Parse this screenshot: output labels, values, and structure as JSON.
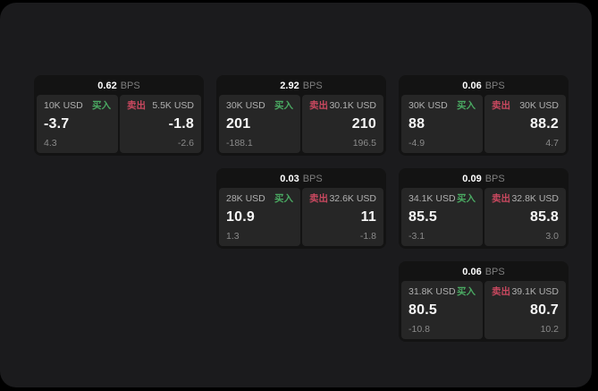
{
  "labels": {
    "buy": "买入",
    "sell": "卖出",
    "bps_unit": "BPS"
  },
  "colors": {
    "background": "#000000",
    "panel_bg": "#1b1b1d",
    "card_bg": "#131313",
    "tile_bg": "#262626",
    "buy_green": "#4aa962",
    "sell_red": "#c8485f",
    "value_white": "#f7f7f7",
    "muted_gray": "#8a8a8a"
  },
  "cards": [
    {
      "bps": "0.62",
      "row": 1,
      "col": 1,
      "buy": {
        "size": "10K USD",
        "price": "-3.7",
        "change": "4.3"
      },
      "sell": {
        "size": "5.5K USD",
        "price": "-1.8",
        "change": "-2.6"
      }
    },
    {
      "bps": "2.92",
      "row": 1,
      "col": 2,
      "buy": {
        "size": "30K USD",
        "price": "201",
        "change": "-188.1"
      },
      "sell": {
        "size": "30.1K USD",
        "price": "210",
        "change": "196.5"
      }
    },
    {
      "bps": "0.06",
      "row": 1,
      "col": 3,
      "buy": {
        "size": "30K USD",
        "price": "88",
        "change": "-4.9"
      },
      "sell": {
        "size": "30K USD",
        "price": "88.2",
        "change": "4.7"
      }
    },
    {
      "bps": "0.03",
      "row": 2,
      "col": 2,
      "buy": {
        "size": "28K USD",
        "price": "10.9",
        "change": "1.3"
      },
      "sell": {
        "size": "32.6K USD",
        "price": "11",
        "change": "-1.8"
      }
    },
    {
      "bps": "0.09",
      "row": 2,
      "col": 3,
      "buy": {
        "size": "34.1K USD",
        "price": "85.5",
        "change": "-3.1"
      },
      "sell": {
        "size": "32.8K USD",
        "price": "85.8",
        "change": "3.0"
      }
    },
    {
      "bps": "0.06",
      "row": 3,
      "col": 3,
      "buy": {
        "size": "31.8K USD",
        "price": "80.5",
        "change": "-10.8"
      },
      "sell": {
        "size": "39.1K USD",
        "price": "80.7",
        "change": "10.2"
      }
    }
  ]
}
